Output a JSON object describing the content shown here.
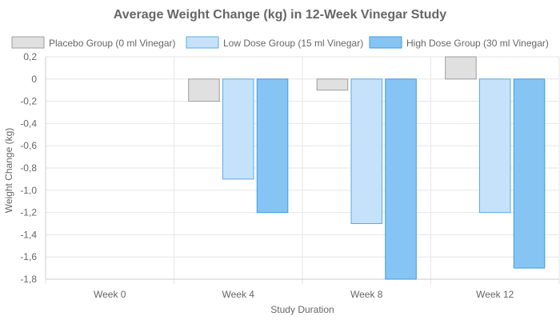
{
  "chart_data": {
    "type": "bar",
    "title": "Average Weight Change (kg) in 12-Week Vinegar Study",
    "xlabel": "Study Duration",
    "ylabel": "Weight Change (kg)",
    "categories": [
      "Week 0",
      "Week 4",
      "Week 8",
      "Week 12"
    ],
    "ylim": [
      -1.8,
      0.2
    ],
    "yticks": [
      "0,2",
      "0",
      "-0,2",
      "-0,4",
      "-0,6",
      "-0,8",
      "-1,0",
      "-1,2",
      "-1,4",
      "-1,6",
      "-1,8"
    ],
    "ytick_values": [
      0.2,
      0,
      -0.2,
      -0.4,
      -0.6,
      -0.8,
      -1.0,
      -1.2,
      -1.4,
      -1.6,
      -1.8
    ],
    "grid": true,
    "legend_position": "top",
    "series": [
      {
        "name": "Placebo Group (0 ml Vinegar)",
        "values": [
          0,
          -0.2,
          -0.1,
          0.2
        ],
        "fill": "#e0e0e0",
        "stroke": "#9e9e9e"
      },
      {
        "name": "Low Dose Group (15 ml Vinegar)",
        "values": [
          0,
          -0.9,
          -1.3,
          -1.2
        ],
        "fill": "#c6e2fb",
        "stroke": "#5aa9e6"
      },
      {
        "name": "High Dose Group (30 ml Vinegar)",
        "values": [
          0,
          -1.2,
          -1.8,
          -1.7
        ],
        "fill": "#86c5f3",
        "stroke": "#3d9ae0"
      }
    ]
  }
}
